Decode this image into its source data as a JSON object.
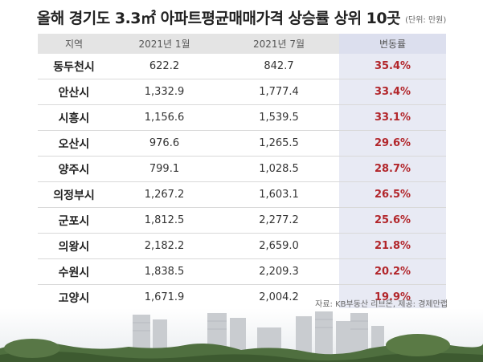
{
  "title": "올해 경기도 3.3㎡ 아파트평균매매가격 상승률 상위 10곳",
  "unit": "(단위: 만원)",
  "source": "자료: KB부동산 리브온, 제공: 경제만랩",
  "chart_data": {
    "type": "table",
    "columns": [
      "지역",
      "2021년 1월",
      "2021년 7월",
      "변동률"
    ],
    "rows": [
      {
        "region": "동두천시",
        "jan": "622.2",
        "jul": "842.7",
        "rate": "35.4%"
      },
      {
        "region": "안산시",
        "jan": "1,332.9",
        "jul": "1,777.4",
        "rate": "33.4%"
      },
      {
        "region": "시흥시",
        "jan": "1,156.6",
        "jul": "1,539.5",
        "rate": "33.1%"
      },
      {
        "region": "오산시",
        "jan": "976.6",
        "jul": "1,265.5",
        "rate": "29.6%"
      },
      {
        "region": "양주시",
        "jan": "799.1",
        "jul": "1,028.5",
        "rate": "28.7%"
      },
      {
        "region": "의정부시",
        "jan": "1,267.2",
        "jul": "1,603.1",
        "rate": "26.5%"
      },
      {
        "region": "군포시",
        "jan": "1,812.5",
        "jul": "2,277.2",
        "rate": "25.6%"
      },
      {
        "region": "의왕시",
        "jan": "2,182.2",
        "jul": "2,659.0",
        "rate": "21.8%"
      },
      {
        "region": "수원시",
        "jan": "1,838.5",
        "jul": "2,209.3",
        "rate": "20.2%"
      },
      {
        "region": "고양시",
        "jan": "1,671.9",
        "jul": "2,004.2",
        "rate": "19.9%"
      }
    ]
  },
  "colors": {
    "header_bg": "#e4e4e4",
    "rate_bg": "#e8eaf4",
    "rate_text": "#b2262b"
  },
  "decorations": [
    "apartment-skyline-photo",
    "forest-trees"
  ]
}
